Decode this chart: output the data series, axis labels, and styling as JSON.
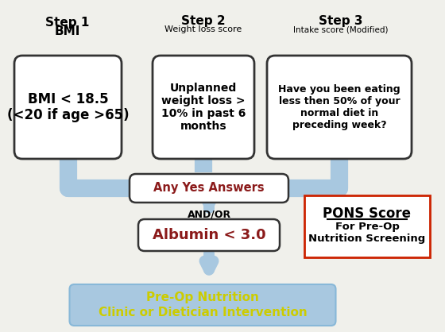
{
  "background_color": "#f0f0eb",
  "step1_title_line1": "Step 1",
  "step1_title_line2": "BMI",
  "step2_title_line1": "Step 2",
  "step2_title_line2": "Weight loss score",
  "step3_title_line1": "Step 3",
  "step3_title_line2": "Intake score (Modified)",
  "step1_box": "BMI < 18.5\n(<20 if age >65)",
  "step2_box": "Unplanned\nweight loss >\n10% in past 6\nmonths",
  "step3_box": "Have you been eating\nless then 50% of your\nnormal diet in\npreceding week?",
  "any_yes_box": "Any Yes Answers",
  "andor_text": "AND/OR",
  "albumin_box": "Albumin < 3.0",
  "pons_line1": "PONS Score",
  "pons_line2": "For Pre-Op\nNutrition Screening",
  "final_box_line1": "Pre-Op Nutrition",
  "final_box_line2": "Clinic or Dietician Intervention",
  "arrow_color": "#a8c8e0",
  "any_yes_text_color": "#8b1a1a",
  "albumin_text_color": "#8b1a1a",
  "final_box_bg": "#a8c8e0",
  "final_text_color": "#cccc00",
  "pons_border_color": "#cc2200",
  "box_edge_color": "#333333"
}
